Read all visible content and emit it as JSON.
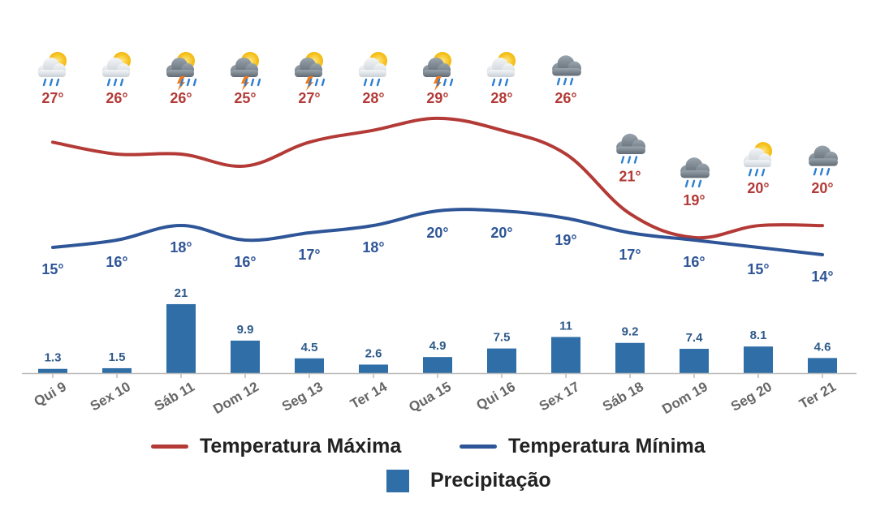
{
  "chart_data": {
    "type": "line+bar",
    "categories": [
      "Qui 9",
      "Sex 10",
      "Sáb 11",
      "Dom 12",
      "Seg 13",
      "Ter 14",
      "Qua 15",
      "Qui 16",
      "Sex 17",
      "Sáb 18",
      "Dom 19",
      "Seg 20",
      "Ter 21"
    ],
    "series": [
      {
        "name": "Temperatura Máxima",
        "type": "line",
        "color": "#b33a36",
        "values": [
          27,
          26,
          26,
          25,
          27,
          28,
          29,
          28,
          26,
          21,
          19,
          20,
          20
        ],
        "labels": [
          "27°",
          "26°",
          "26°",
          "25°",
          "27°",
          "28°",
          "29°",
          "28°",
          "26°",
          "21°",
          "19°",
          "20°",
          "20°"
        ]
      },
      {
        "name": "Temperatura Mínima",
        "type": "line",
        "color": "#2e5597",
        "values": [
          15,
          16,
          18,
          16,
          17,
          18,
          20,
          20,
          19,
          17,
          16,
          15,
          14
        ],
        "labels": [
          "15°",
          "16°",
          "18°",
          "16°",
          "17°",
          "18°",
          "20°",
          "20°",
          "19°",
          "17°",
          "16°",
          "15°",
          "14°"
        ]
      },
      {
        "name": "Precipitação",
        "type": "bar",
        "color": "#2f6ea6",
        "values": [
          1.3,
          1.5,
          21,
          9.9,
          4.5,
          2.6,
          4.9,
          7.5,
          11,
          9.2,
          7.4,
          8.1,
          4.6
        ],
        "labels": [
          "1.3",
          "1.5",
          "21",
          "9.9",
          "4.5",
          "2.6",
          "4.9",
          "7.5",
          "11",
          "9.2",
          "7.4",
          "8.1",
          "4.6"
        ]
      }
    ],
    "icons": [
      "partly-cloudy-rain-icon",
      "partly-cloudy-rain-icon",
      "thunderstorm-icon",
      "thunderstorm-icon",
      "thunderstorm-icon",
      "partly-cloudy-rain-icon",
      "thunderstorm-icon",
      "partly-cloudy-rain-icon",
      "rain-cloud-icon",
      "rain-cloud-icon",
      "rain-cloud-icon",
      "partly-cloudy-rain-icon",
      "rain-cloud-icon"
    ],
    "legend": {
      "position": "bottom",
      "max_label": "Temperatura Máxima",
      "min_label": "Temperatura Mínima",
      "precip_label": "Precipitação"
    },
    "colors": {
      "max": "#b33a36",
      "min": "#2e5597",
      "precip": "#2f6ea6",
      "precip_label": "#2e5a8a",
      "axis": "#bbbbbb",
      "tick_label": "#666666"
    },
    "grid": false
  }
}
